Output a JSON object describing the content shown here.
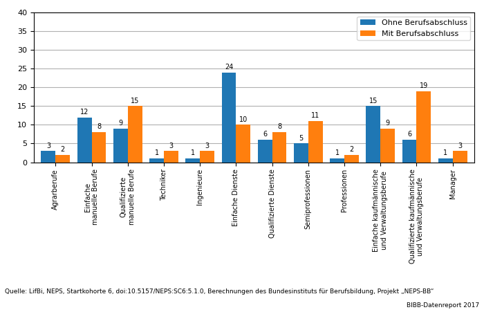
{
  "chart_data": {
    "type": "bar",
    "categories": [
      "Agrarberufe",
      "Einfache\nmanuelle Berufe",
      "Qualifizierte\nmanuelle Berufe",
      "Techniker",
      "Ingenieure",
      "Einfache Dienste",
      "Qualifizierte Dienste",
      "Semiprofessionen",
      "Professionen",
      "Einfache kaufmännische\nund Verwaltungsberufe",
      "Qualifizierte kaufmännische\nund Verwaltungsberufe",
      "Manager"
    ],
    "series": [
      {
        "name": "Ohne Berufsabschluss",
        "values": [
          3,
          12,
          9,
          1,
          1,
          24,
          6,
          5,
          1,
          15,
          6,
          1
        ]
      },
      {
        "name": "Mit Berufsabschluss",
        "values": [
          2,
          8,
          15,
          3,
          3,
          10,
          8,
          11,
          2,
          9,
          19,
          3
        ]
      }
    ],
    "ylim": [
      0,
      40
    ],
    "yticks": [
      0,
      5,
      10,
      15,
      20,
      25,
      30,
      35,
      40
    ],
    "grid": true,
    "legend": "upper right",
    "data_labels": true,
    "annotations": [
      "Quelle: LifBi, NEPS, Startkohorte 6, doi:10.5157/NEPS:SC6:5.1.0, Berechnungen des Bundesinstituts für Berufsbildung, Projekt „NEPS-BB“",
      "BIBB-Datenreport 2017"
    ]
  }
}
